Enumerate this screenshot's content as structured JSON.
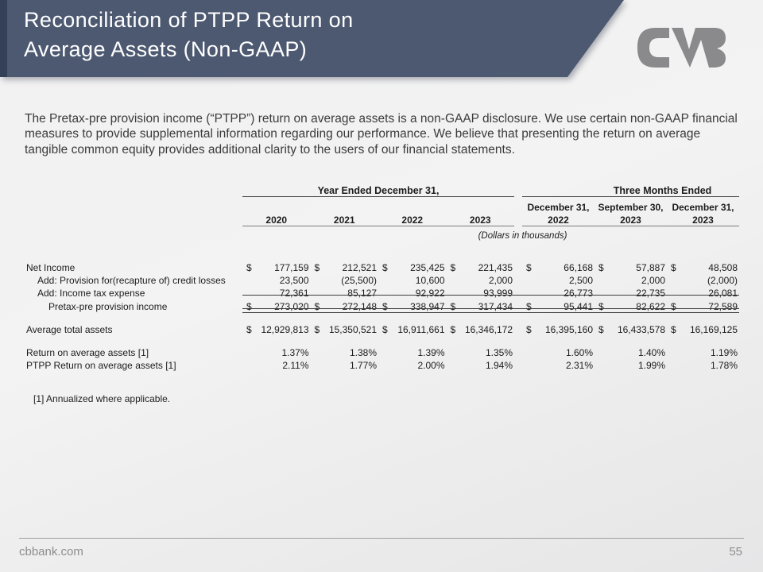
{
  "header": {
    "title_line1": "Reconciliation of PTPP Return on",
    "title_line2": "Average Assets (Non-GAAP)",
    "banner_color": "#4d5971",
    "banner_stripe_color": "#343f58",
    "logo_color": "#8a8a8d"
  },
  "intro": {
    "text": "The Pretax-pre provision income (“PTPP”) return on average assets is a non-GAAP disclosure. We use certain non-GAAP financial measures to provide supplemental information regarding our performance. We believe that presenting the return on average tangible common equity provides additional clarity to the users of our financial statements."
  },
  "table": {
    "currency_symbol": "$",
    "groups": [
      {
        "label": "Year Ended December 31,"
      },
      {
        "label": "Three Months Ended"
      }
    ],
    "annual_columns": [
      "2020",
      "2021",
      "2022",
      "2023"
    ],
    "quarter_columns": [
      {
        "line1": "December 31,",
        "line2": "2022"
      },
      {
        "line1": "September 30,",
        "line2": "2023"
      },
      {
        "line1": "December 31,",
        "line2": "2023"
      }
    ],
    "units_note": "(Dollars in thousands)",
    "rows": [
      {
        "label": "Net Income",
        "indent": 0,
        "dollar": true,
        "values": [
          "177,159",
          "212,521",
          "235,425",
          "221,435",
          "66,168",
          "57,887",
          "48,508"
        ]
      },
      {
        "label": "Add: Provision for(recapture of) credit losses",
        "indent": 1,
        "dollar": false,
        "values": [
          "23,500",
          "(25,500)",
          "10,600",
          "2,000",
          "2,500",
          "2,000",
          "(2,000)"
        ]
      },
      {
        "label": "Add: Income tax expense",
        "indent": 1,
        "dollar": false,
        "values": [
          "72,361",
          "85,127",
          "92,922",
          "93,999",
          "26,773",
          "22,735",
          "26,081"
        ]
      },
      {
        "label": "Pretax-pre provision income",
        "indent": 2,
        "dollar": true,
        "rule_top": true,
        "rule_bottom": "double",
        "spacer_after": "total",
        "values": [
          "273,020",
          "272,148",
          "338,947",
          "317,434",
          "95,441",
          "82,622",
          "72,589"
        ]
      },
      {
        "label": "Average total assets",
        "indent": 0,
        "dollar": true,
        "spacer_after": "avg",
        "values": [
          "12,929,813",
          "15,350,521",
          "16,911,661",
          "16,346,172",
          "16,395,160",
          "16,433,578",
          "16,169,125"
        ]
      },
      {
        "label": "Return on average assets [1]",
        "indent": 0,
        "dollar": false,
        "values": [
          "1.37%",
          "1.38%",
          "1.39%",
          "1.35%",
          "1.60%",
          "1.40%",
          "1.19%"
        ]
      },
      {
        "label": "PTPP Return on average assets [1]",
        "indent": 0,
        "dollar": false,
        "values": [
          "2.11%",
          "1.77%",
          "2.00%",
          "1.94%",
          "2.31%",
          "1.99%",
          "1.78%"
        ]
      }
    ]
  },
  "footnote": "[1] Annualized where applicable.",
  "footer": {
    "website": "cbbank.com",
    "page_number": "55"
  }
}
